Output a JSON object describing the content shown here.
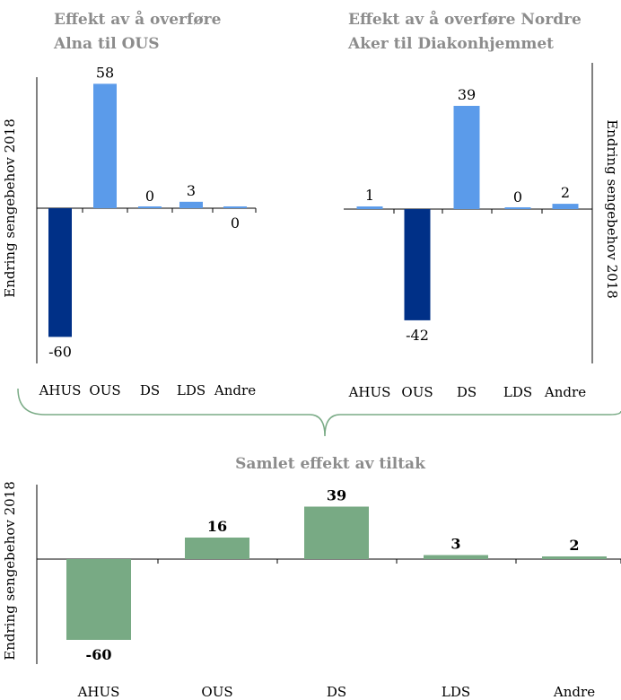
{
  "chart_data": [
    {
      "type": "bar",
      "title_lines": [
        "Effekt av å overføre",
        "Alna til OUS"
      ],
      "ylabel": "Endring sengebehov 2018",
      "categories": [
        "AHUS",
        "OUS",
        "DS",
        "LDS",
        "Andre"
      ],
      "values": [
        -60,
        58,
        0,
        3,
        0
      ],
      "value_labels": [
        "-60",
        "58",
        "0",
        "3",
        "0"
      ],
      "bar_colors": [
        "#003087",
        "#5b9bea",
        "#5b9bea",
        "#5b9bea",
        "#5b9bea"
      ],
      "ylim": [
        -62,
        62
      ],
      "grid": false
    },
    {
      "type": "bar",
      "title_lines": [
        "Effekt av å overføre Nordre",
        "Aker til Diakonhjemmet"
      ],
      "ylabel": "Endring sengebehov 2018",
      "categories": [
        "AHUS",
        "OUS",
        "DS",
        "LDS",
        "Andre"
      ],
      "values": [
        1,
        -42,
        39,
        0,
        2
      ],
      "value_labels": [
        "1",
        "-42",
        "39",
        "0",
        "2"
      ],
      "bar_colors": [
        "#5b9bea",
        "#003087",
        "#5b9bea",
        "#5b9bea",
        "#5b9bea"
      ],
      "ylim": [
        -62,
        62
      ],
      "grid": false
    },
    {
      "type": "bar",
      "title_lines": [
        "Samlet effekt av tiltak"
      ],
      "ylabel": "Endring sengebehov 2018",
      "categories": [
        "AHUS",
        "OUS",
        "DS",
        "LDS",
        "Andre"
      ],
      "values": [
        -60,
        16,
        39,
        3,
        2
      ],
      "value_labels": [
        "-60",
        "16",
        "39",
        "3",
        "2"
      ],
      "bar_colors": [
        "#78aa84",
        "#78aa84",
        "#78aa84",
        "#78aa84",
        "#78aa84"
      ],
      "ylim": [
        -62,
        62
      ],
      "grid": false
    }
  ],
  "colors": {
    "brace": "#7aab86",
    "title": "#8c8c8c"
  }
}
